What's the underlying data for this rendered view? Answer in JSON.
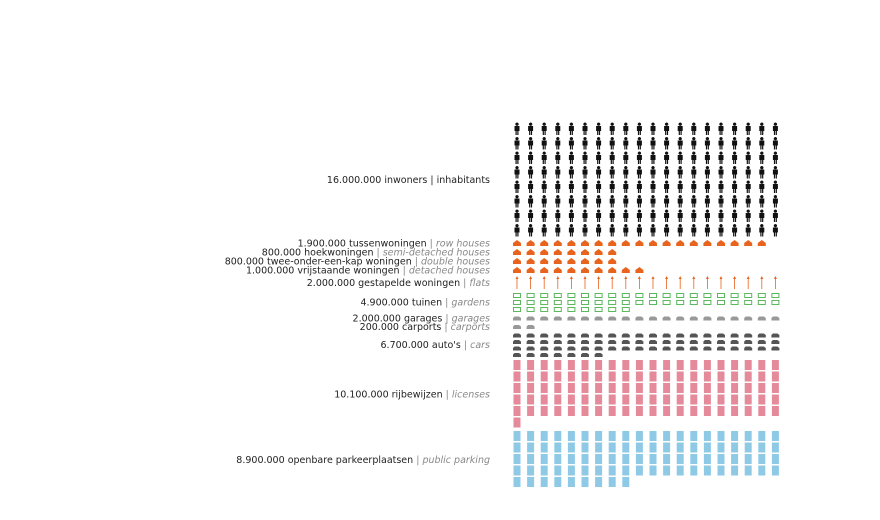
{
  "chart_data": {
    "type": "pictogram",
    "series": [
      {
        "name": "inwoners",
        "translation": "| inhabitants",
        "italic": false,
        "values": [
          16000000
        ],
        "value_labels": [
          "16.000.000"
        ],
        "color": "#111111",
        "icon": "person"
      },
      {
        "name": "tussenwoningen",
        "translation": "| row houses",
        "italic": true,
        "values": [
          1900000
        ],
        "value_labels": [
          "1.900.000"
        ],
        "color": "#e8641e",
        "icon": "house"
      },
      {
        "name": "hoekwoningen",
        "translation": "| semi-detached houses",
        "italic": true,
        "values": [
          800000
        ],
        "value_labels": [
          "800.000"
        ],
        "color": "#e8641e",
        "icon": "house"
      },
      {
        "name": "twee-onder-een-kap woningen",
        "translation": "| double houses",
        "italic": true,
        "values": [
          800000
        ],
        "value_labels": [
          "800.000"
        ],
        "color": "#e8641e",
        "icon": "house"
      },
      {
        "name": "vrijstaande woningen",
        "translation": "| detached houses",
        "italic": true,
        "values": [
          1000000
        ],
        "value_labels": [
          "1.000.000"
        ],
        "color": "#e8641e",
        "icon": "house"
      },
      {
        "name": "gestapelde woningen",
        "translation": "| flats",
        "italic": true,
        "values": [
          2000000
        ],
        "value_labels": [
          "2.000.000"
        ],
        "color": "#e8641e",
        "icon": "arrow"
      },
      {
        "name": "tuinen",
        "translation": "| gardens",
        "italic": true,
        "values": [
          4900000
        ],
        "value_labels": [
          "4.900.000"
        ],
        "color": "#5cb85c",
        "icon": "frame"
      },
      {
        "name": "garages",
        "translation": "| garages",
        "italic": true,
        "values": [
          2000000
        ],
        "value_labels": [
          "2.000.000"
        ],
        "color": "#999999",
        "icon": "car"
      },
      {
        "name": "carports",
        "translation": "| carports",
        "italic": true,
        "values": [
          200000
        ],
        "value_labels": [
          "200.000"
        ],
        "color": "#999999",
        "icon": "car"
      },
      {
        "name": "auto's",
        "translation": "| cars",
        "italic": true,
        "values": [
          6700000
        ],
        "value_labels": [
          "6.700.000"
        ],
        "color": "#555555",
        "icon": "car"
      },
      {
        "name": "rijbewijzen",
        "translation": "| licenses",
        "italic": true,
        "values": [
          10100000
        ],
        "value_labels": [
          "10.100.000"
        ],
        "color": "#e58a9a",
        "icon": "card"
      },
      {
        "name": "openbare parkeerplaatsen",
        "translation": "| public parking",
        "italic": true,
        "values": [
          8900000
        ],
        "value_labels": [
          "8.900.000"
        ],
        "color": "#8ecae6",
        "icon": "card"
      }
    ]
  }
}
